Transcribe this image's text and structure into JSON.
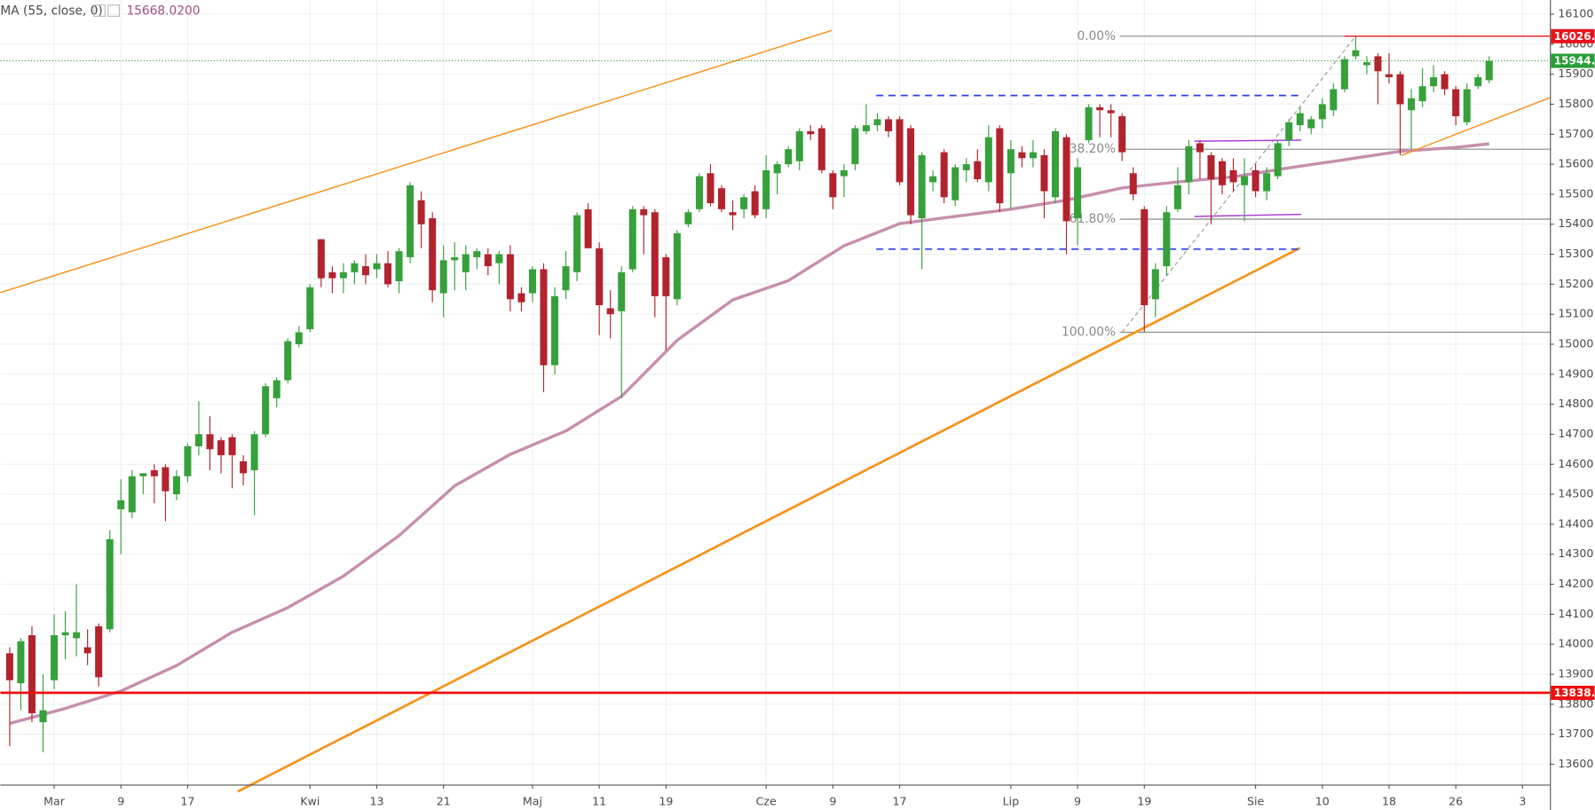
{
  "chart_data": {
    "type": "candlestick",
    "indicator": {
      "name": "MA (55, close, 0)",
      "value_label": "15668.0200",
      "color": "#c68fae",
      "x": [
        0,
        5,
        10,
        15,
        20,
        25,
        30,
        35,
        40,
        45,
        50,
        55,
        60,
        65,
        70,
        75,
        80,
        85,
        90,
        95,
        100,
        105,
        110,
        115,
        120,
        125,
        130,
        133
      ],
      "values": [
        13736,
        13786,
        13844,
        13929,
        14040,
        14122,
        14227,
        14362,
        14528,
        14633,
        14711,
        14826,
        15013,
        15148,
        15212,
        15328,
        15402,
        15426,
        15450,
        15480,
        15521,
        15541,
        15558,
        15588,
        15615,
        15643,
        15656,
        15668.02
      ]
    },
    "up_color": "#36a03a",
    "down_color": "#b2232e",
    "open": [
      13970,
      13870,
      14030,
      13740,
      13880,
      14030,
      14020,
      13990,
      14060,
      14050,
      14450,
      14440,
      14560,
      14580,
      14590,
      14500,
      14560,
      14660,
      14700,
      14680,
      14690,
      14610,
      14580,
      14700,
      14820,
      14880,
      15000,
      15050,
      15350,
      15240,
      15220,
      15240,
      15260,
      15250,
      15270,
      15210,
      15290,
      15480,
      15420,
      15170,
      15280,
      15240,
      15290,
      15300,
      15270,
      15300,
      15170,
      15170,
      15250,
      14930,
      15180,
      15240,
      15450,
      15320,
      15120,
      15110,
      15250,
      15450,
      15440,
      15290,
      15150,
      15400,
      15450,
      15570,
      15520,
      15440,
      15450,
      15510,
      15450,
      15570,
      15600,
      15610,
      15710,
      15720,
      15570,
      15560,
      15600,
      15710,
      15730,
      15750,
      15750,
      15720,
      15420,
      15540,
      15640,
      15480,
      15580,
      15610,
      15540,
      15720,
      15570,
      15640,
      15620,
      15630,
      15490,
      15690,
      15420,
      15680,
      15790,
      15780,
      15760,
      15570,
      15450,
      15150,
      15260,
      15450,
      15540,
      15670,
      15630,
      15610,
      15580,
      15530,
      15580,
      15510,
      15560,
      15680,
      15730,
      15720,
      15750,
      15780,
      15850,
      15960,
      15930,
      15960,
      15900,
      15900,
      15780,
      15810,
      15860,
      15900,
      15850,
      15740,
      15860,
      15880
    ],
    "high": [
      13990,
      14020,
      14060,
      13900,
      14100,
      14110,
      14200,
      14050,
      14070,
      14380,
      14550,
      14580,
      14570,
      14600,
      14600,
      14580,
      14670,
      14810,
      14760,
      14690,
      14700,
      14630,
      14710,
      14870,
      14890,
      15020,
      15060,
      15200,
      15350,
      15260,
      15270,
      15280,
      15300,
      15300,
      15310,
      15320,
      15540,
      15510,
      15440,
      15330,
      15340,
      15330,
      15320,
      15320,
      15310,
      15330,
      15190,
      15260,
      15270,
      15190,
      15310,
      15440,
      15470,
      15340,
      15180,
      15260,
      15460,
      15460,
      15450,
      15300,
      15380,
      15450,
      15570,
      15600,
      15530,
      15480,
      15500,
      15530,
      15630,
      15610,
      15660,
      15720,
      15730,
      15730,
      15580,
      15600,
      15730,
      15800,
      15770,
      15760,
      15760,
      15730,
      15640,
      15580,
      15650,
      15600,
      15620,
      15650,
      15730,
      15730,
      15680,
      15660,
      15680,
      15650,
      15720,
      15700,
      15620,
      15800,
      15800,
      15800,
      15770,
      15590,
      15460,
      15270,
      15460,
      15590,
      15680,
      15680,
      15640,
      15620,
      15620,
      15620,
      15600,
      15590,
      15680,
      15750,
      15790,
      15760,
      15820,
      15870,
      15960,
      16026.7,
      15960,
      15970,
      15970,
      15910,
      15850,
      15920,
      15930,
      15910,
      15860,
      15870,
      15900,
      15960
    ],
    "low": [
      13660,
      13780,
      13740,
      13640,
      13850,
      13950,
      13960,
      13930,
      13860,
      14040,
      14300,
      14420,
      14500,
      14470,
      14410,
      14480,
      14540,
      14630,
      14580,
      14570,
      14520,
      14530,
      14430,
      14690,
      14790,
      14870,
      14990,
      15040,
      15190,
      15170,
      15170,
      15200,
      15200,
      15220,
      15190,
      15170,
      15270,
      15320,
      15140,
      15090,
      15180,
      15180,
      15250,
      15230,
      15200,
      15110,
      15110,
      15140,
      14840,
      14900,
      15150,
      15210,
      15320,
      15030,
      15020,
      14820,
      15240,
      15300,
      15090,
      14980,
      15130,
      15390,
      15440,
      15460,
      15440,
      15380,
      15420,
      15420,
      15420,
      15500,
      15590,
      15580,
      15680,
      15570,
      15450,
      15490,
      15580,
      15700,
      15710,
      15690,
      15530,
      15400,
      15250,
      15510,
      15470,
      15460,
      15540,
      15540,
      15510,
      15440,
      15450,
      15590,
      15590,
      15420,
      15470,
      15300,
      15330,
      15670,
      15690,
      15690,
      15610,
      15480,
      15040,
      15090,
      15230,
      15440,
      15500,
      15550,
      15400,
      15500,
      15510,
      15410,
      15490,
      15480,
      15550,
      15660,
      15710,
      15700,
      15720,
      15760,
      15840,
      15950,
      15900,
      15800,
      15870,
      15630,
      15650,
      15790,
      15840,
      15830,
      15730,
      15730,
      15850,
      15870
    ],
    "close": [
      13880,
      14010,
      13770,
      13780,
      14030,
      14040,
      14040,
      13970,
      13890,
      14350,
      14480,
      14560,
      14570,
      14560,
      14510,
      14560,
      14660,
      14700,
      14650,
      14630,
      14630,
      14570,
      14700,
      14860,
      14880,
      15010,
      15040,
      15190,
      15220,
      15220,
      15240,
      15270,
      15230,
      15270,
      15200,
      15310,
      15530,
      15400,
      15180,
      15280,
      15290,
      15300,
      15310,
      15260,
      15300,
      15150,
      15140,
      15250,
      14930,
      15160,
      15260,
      15430,
      15320,
      15130,
      15100,
      15240,
      15450,
      15430,
      15160,
      15160,
      15370,
      15440,
      15560,
      15470,
      15450,
      15430,
      15490,
      15430,
      15580,
      15600,
      15650,
      15710,
      15700,
      15580,
      15490,
      15580,
      15720,
      15730,
      15750,
      15710,
      15540,
      15430,
      15630,
      15560,
      15490,
      15590,
      15600,
      15550,
      15690,
      15470,
      15650,
      15620,
      15640,
      15510,
      15710,
      15410,
      15590,
      15790,
      15780,
      15770,
      15640,
      15500,
      15130,
      15250,
      15440,
      15530,
      15660,
      15640,
      15550,
      15530,
      15540,
      15560,
      15510,
      15570,
      15670,
      15740,
      15770,
      15750,
      15800,
      15850,
      15950,
      15980,
      15940,
      15910,
      15890,
      15800,
      15820,
      15860,
      15890,
      15850,
      15760,
      15850,
      15890,
      15944.6
    ],
    "xlim": [
      -0.84,
      138.46
    ],
    "xticks": [
      {
        "value": 4,
        "label": "Mar"
      },
      {
        "value": 10,
        "label": "9"
      },
      {
        "value": 16,
        "label": "17"
      },
      {
        "value": 27,
        "label": "Kwi"
      },
      {
        "value": 33,
        "label": "13"
      },
      {
        "value": 39,
        "label": "21"
      },
      {
        "value": 47,
        "label": "Maj"
      },
      {
        "value": 53,
        "label": "11"
      },
      {
        "value": 59,
        "label": "19"
      },
      {
        "value": 68,
        "label": "Cze"
      },
      {
        "value": 74,
        "label": "9"
      },
      {
        "value": 80,
        "label": "17"
      },
      {
        "value": 90,
        "label": "Lip"
      },
      {
        "value": 96,
        "label": "9"
      },
      {
        "value": 102,
        "label": "19"
      },
      {
        "value": 112,
        "label": "Sie"
      },
      {
        "value": 118,
        "label": "10"
      },
      {
        "value": 124,
        "label": "18"
      },
      {
        "value": 130,
        "label": "26"
      },
      {
        "value": 136,
        "label": "3"
      }
    ],
    "ylim": [
      13532.2,
      16147.4
    ],
    "yticks": [
      13600,
      13700,
      13800,
      13900,
      14000,
      14100,
      14200,
      14300,
      14400,
      14500,
      14600,
      14700,
      14800,
      14900,
      15000,
      15100,
      15200,
      15300,
      15400,
      15500,
      15600,
      15700,
      15800,
      15900,
      16000,
      16100
    ],
    "grid": true,
    "price_lines": [
      {
        "value": 16026.7,
        "color": "#e8141b",
        "x_start": 120,
        "style": "solid"
      },
      {
        "value": 15944.6,
        "color": "#2a9e37",
        "x_start": -0.84,
        "style": "dotted"
      },
      {
        "value": 13838.1,
        "color": "#f01010",
        "x_start": -0.84,
        "style": "thick"
      }
    ],
    "fib": {
      "color": "#888888",
      "x_start": 99.8,
      "from": [
        100,
        15040
      ],
      "to": [
        121,
        16026.7
      ],
      "levels": [
        {
          "value": 16026.7,
          "label": "0.00%"
        },
        {
          "value": 15650,
          "label": "38.20%"
        },
        {
          "value": 15417,
          "label": "61.80%"
        },
        {
          "value": 15040,
          "label": "100.00%"
        }
      ]
    },
    "lines": [
      {
        "color": "#f7931e",
        "style": "solid",
        "x": [
          -0.84,
          73.9
        ],
        "y": [
          15172,
          16046
        ]
      },
      {
        "color": "#f7931e",
        "style": "thick",
        "x": [
          20.5,
          116
        ],
        "y": [
          13509,
          15321
        ]
      },
      {
        "color": "#f7931e",
        "style": "solid",
        "x": [
          125.1,
          138.46
        ],
        "y": [
          15629,
          15822
        ]
      },
      {
        "color": "#2a3ff0",
        "style": "dashed",
        "x": [
          77.9,
          116.2
        ],
        "y": [
          15829,
          15829
        ]
      },
      {
        "color": "#2a3ff0",
        "style": "dashed",
        "x": [
          77.9,
          116.2
        ],
        "y": [
          15317,
          15317
        ]
      },
      {
        "color": "#a83fd8",
        "style": "solid",
        "x": [
          106.5,
          116.1
        ],
        "y": [
          15677,
          15680
        ]
      },
      {
        "color": "#a83fd8",
        "style": "solid",
        "x": [
          106.5,
          116.1
        ],
        "y": [
          15426,
          15433
        ]
      }
    ]
  }
}
